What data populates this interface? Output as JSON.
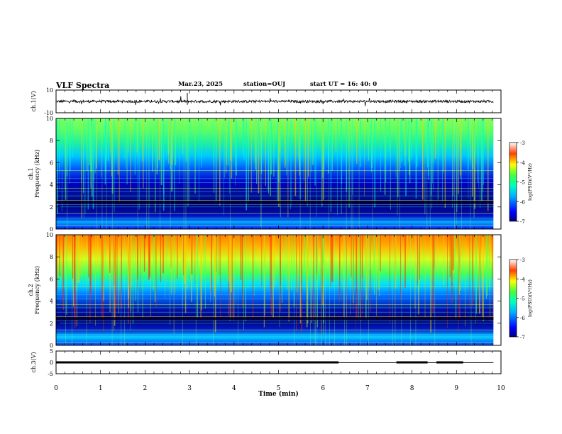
{
  "header": {
    "title": "VLF Spectra",
    "date": "Mar.23, 2025",
    "station": "station=OUJ",
    "start": "start  UT =   16: 40: 0"
  },
  "chart_data": [
    {
      "type": "line",
      "panel": "ch1-waveform",
      "ylabel": "ch.1(V)",
      "yticks": [
        "10",
        "-10"
      ],
      "ylim": [
        -10,
        10
      ],
      "x": [
        0,
        0.5,
        1,
        1.5,
        2,
        2.5,
        3,
        3.5,
        4,
        4.5,
        5,
        5.5,
        6,
        6.5,
        7,
        7.5,
        8,
        8.5,
        9,
        9.5,
        9.83
      ],
      "series": [
        {
          "values": [
            0,
            0,
            0,
            0,
            0,
            0,
            0,
            0,
            0,
            0,
            0,
            0,
            0,
            0,
            0,
            0,
            0,
            0,
            0,
            0,
            0
          ]
        }
      ]
    },
    {
      "type": "heatmap",
      "panel": "ch1-spectrogram",
      "ylabel": "ch.1\nFrequency (kHz)",
      "ylim": [
        0,
        10
      ],
      "yticks": [
        "0",
        "2",
        "4",
        "6",
        "8",
        "10"
      ],
      "colorbar": {
        "label": "log(PSD)(V²/Hz)",
        "ticks": [
          "-3",
          "-4",
          "-5",
          "-6",
          "-7"
        ],
        "range": [
          -7,
          -3
        ]
      }
    },
    {
      "type": "heatmap",
      "panel": "ch2-spectrogram",
      "ylabel": "ch.2\nFrequency (kHz)",
      "ylim": [
        0,
        10
      ],
      "yticks": [
        "0",
        "2",
        "4",
        "6",
        "8",
        "10"
      ],
      "colorbar": {
        "label": "log(PSD)(V²/Hz)",
        "ticks": [
          "-3",
          "-4",
          "-5",
          "-6",
          "-7"
        ],
        "range": [
          -7,
          -3
        ]
      }
    },
    {
      "type": "line",
      "panel": "ch3-signal",
      "ylabel": "ch.3(V)",
      "yticks": [
        "5",
        "0",
        "-5"
      ],
      "ylim": [
        -5,
        5
      ],
      "segments": [
        {
          "x": [
            0,
            6.35
          ],
          "y": 0
        },
        {
          "x": [
            7.65,
            8.35
          ],
          "y": 0
        },
        {
          "x": [
            8.55,
            9.15
          ],
          "y": 0
        }
      ],
      "baseline": {
        "x": [
          0,
          9.83
        ],
        "y": -0.1
      }
    }
  ],
  "xaxis": {
    "label": "Time  (min)",
    "ticks": [
      "0",
      "1",
      "2",
      "3",
      "4",
      "5",
      "6",
      "7",
      "8",
      "9",
      "10"
    ],
    "xlim": [
      0,
      10
    ]
  }
}
